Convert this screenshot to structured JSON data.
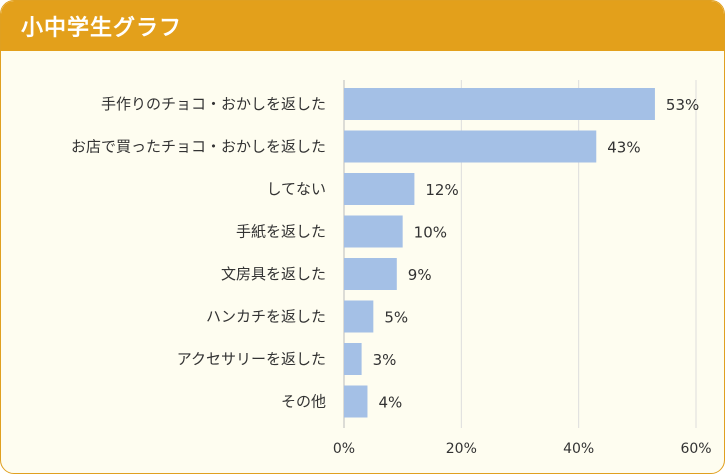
{
  "header": {
    "title": "小中学生グラフ"
  },
  "colors": {
    "header": "#e3a01b",
    "bar": "#a4c0e6",
    "grid": "#dddddd",
    "background": "#fefdf0"
  },
  "chart_data": {
    "type": "bar",
    "orientation": "horizontal",
    "categories": [
      "手作りのチョコ・おかしを返した",
      "お店で買ったチョコ・おかしを返した",
      "してない",
      "手紙を返した",
      "文房具を返した",
      "ハンカチを返した",
      "アクセサリーを返した",
      "その他"
    ],
    "values": [
      53,
      43,
      12,
      10,
      9,
      5,
      3,
      4
    ],
    "value_labels": [
      "53%",
      "43%",
      "12%",
      "10%",
      "9%",
      "5%",
      "3%",
      "4%"
    ],
    "xlim": [
      0,
      60
    ],
    "ticks": [
      0,
      20,
      40,
      60
    ],
    "tick_labels": [
      "0%",
      "20%",
      "40%",
      "60%"
    ],
    "grid": true
  }
}
